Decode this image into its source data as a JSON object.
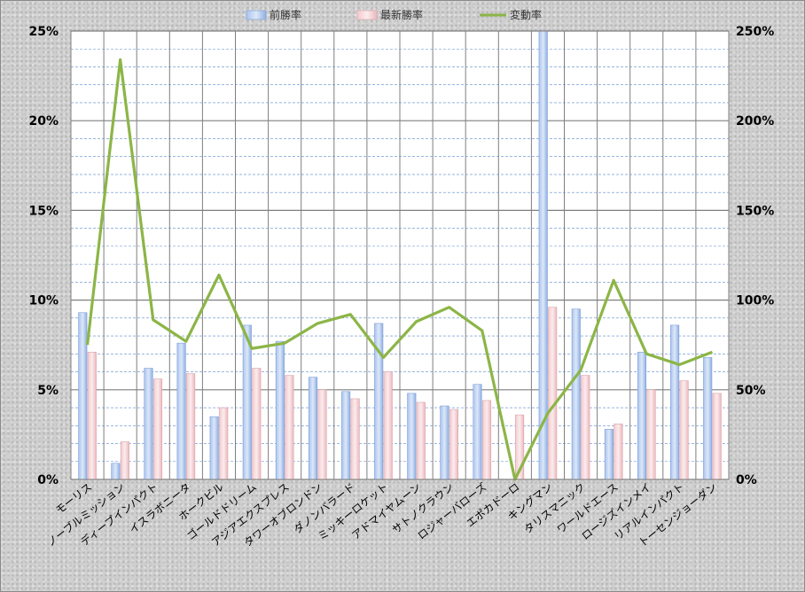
{
  "chart_data": {
    "type": "bar",
    "categories": [
      "モーリス",
      "ノーブルミッション",
      "ディープインパクト",
      "イスラボニータ",
      "ホークビル",
      "ゴールドドリーム",
      "アジアエクスプレス",
      "タワーオブロンドン",
      "ダノンバラード",
      "ミッキーロケット",
      "アドマイヤムーン",
      "サトノクラウン",
      "ロジャーバローズ",
      "エポカドーロ",
      "キングマン",
      "タリスマニック",
      "ワールドエース",
      "ロージズインメイ",
      "リアルインパクト",
      "トーセンジョーダン"
    ],
    "series": [
      {
        "name": "前勝率",
        "axis": "left",
        "type": "bar",
        "color": "#9db9e8",
        "values": [
          9.3,
          0.9,
          6.2,
          7.6,
          3.5,
          8.6,
          7.7,
          5.7,
          4.9,
          8.7,
          4.8,
          4.1,
          5.3,
          0,
          25.0,
          9.5,
          2.8,
          7.1,
          8.6,
          6.8
        ]
      },
      {
        "name": "最新勝率",
        "axis": "left",
        "type": "bar",
        "color": "#f0c4c8",
        "values": [
          7.1,
          2.1,
          5.6,
          5.9,
          4.0,
          6.2,
          5.8,
          5.0,
          4.5,
          6.0,
          4.3,
          3.9,
          4.4,
          3.6,
          9.6,
          5.8,
          3.1,
          5.0,
          5.5,
          4.8
        ]
      },
      {
        "name": "変動率",
        "axis": "right",
        "type": "line",
        "color": "#8cb547",
        "values": [
          75,
          234,
          89,
          77,
          114,
          73,
          76,
          87,
          92,
          68,
          88,
          96,
          83,
          0,
          37,
          61,
          111,
          70,
          64,
          71
        ]
      }
    ],
    "y_left": {
      "min": 0,
      "max": 25,
      "ticks": [
        "0%",
        "5%",
        "10%",
        "15%",
        "20%",
        "25%"
      ]
    },
    "y_right": {
      "min": 0,
      "max": 250,
      "ticks": [
        "0%",
        "50%",
        "100%",
        "150%",
        "200%",
        "250%"
      ]
    },
    "legend": {
      "position": "top"
    },
    "grid": true,
    "colors": {
      "grid_major": "#7f7f7f",
      "grid_minor": "#5b8bc9"
    }
  }
}
